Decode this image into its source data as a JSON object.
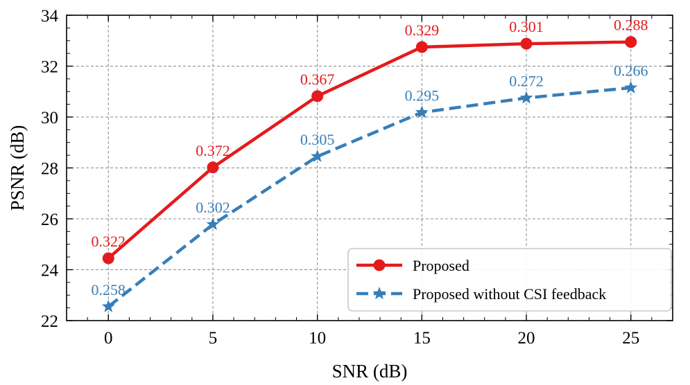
{
  "chart_data": {
    "type": "line",
    "title": "",
    "xlabel": "SNR (dB)",
    "ylabel": "PSNR (dB)",
    "xlim": [
      -2,
      27
    ],
    "ylim": [
      22,
      34
    ],
    "x": [
      0,
      5,
      10,
      15,
      20,
      25
    ],
    "xticks": [
      0,
      5,
      10,
      15,
      20,
      25
    ],
    "yticks": [
      22,
      24,
      26,
      28,
      30,
      32,
      34
    ],
    "grid": true,
    "legend_position": "bottom-right",
    "series": [
      {
        "name": "Proposed",
        "color": "#e41a1c",
        "marker": "circle",
        "linestyle": "solid",
        "values": [
          24.45,
          28.02,
          30.82,
          32.75,
          32.88,
          32.95
        ],
        "labels": [
          "0.322",
          "0.372",
          "0.367",
          "0.329",
          "0.301",
          "0.288"
        ]
      },
      {
        "name": "Proposed without CSI feedback",
        "color": "#377eb8",
        "marker": "star",
        "linestyle": "dashed",
        "values": [
          22.55,
          25.78,
          28.45,
          30.18,
          30.75,
          31.15
        ],
        "labels": [
          "0.258",
          "0.302",
          "0.305",
          "0.295",
          "0.272",
          "0.266"
        ]
      }
    ]
  }
}
